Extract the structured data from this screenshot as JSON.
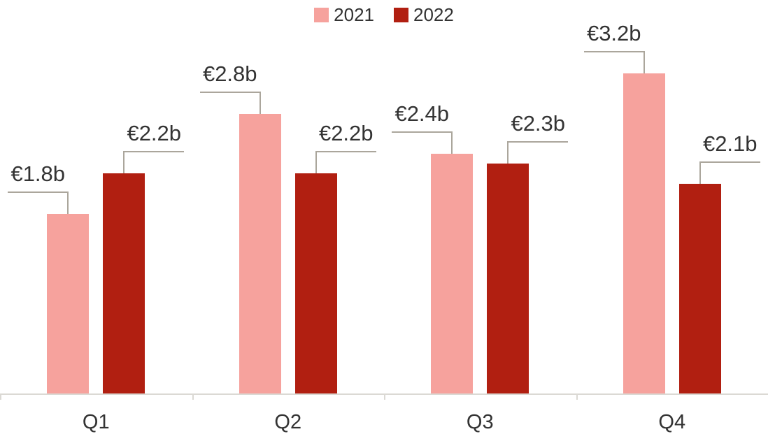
{
  "legend": {
    "items": [
      {
        "label": "2021",
        "color": "#F6A29D"
      },
      {
        "label": "2022",
        "color": "#B11F11"
      }
    ]
  },
  "chart_data": {
    "type": "bar",
    "title": "",
    "categories": [
      "Q1",
      "Q2",
      "Q3",
      "Q4"
    ],
    "series": [
      {
        "name": "2021",
        "color": "#F6A29D",
        "values": [
          1.8,
          2.8,
          2.4,
          3.2
        ],
        "data_labels": [
          "€1.8b",
          "€2.8b",
          "€2.4b",
          "€3.2b"
        ]
      },
      {
        "name": "2022",
        "color": "#B11F11",
        "values": [
          2.2,
          2.2,
          2.3,
          2.1
        ],
        "data_labels": [
          "€2.2b",
          "€2.2b",
          "€2.3b",
          "€2.1b"
        ]
      }
    ],
    "xlabel": "",
    "ylabel": "",
    "ylim": [
      0,
      3.5
    ],
    "gridlines": false,
    "legend_position": "top",
    "data_label_style": "callout",
    "colors": {
      "callout_line": "#ABA69C",
      "axis_line": "#DBD9D4",
      "label_text": "#333333"
    }
  }
}
